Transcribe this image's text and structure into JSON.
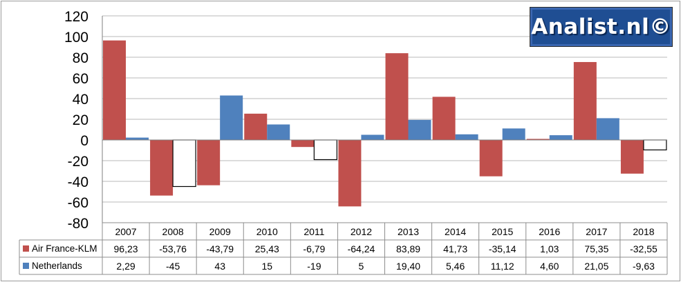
{
  "logo": {
    "text": "Analist.nl©",
    "bg_color": "#1f4e93"
  },
  "chart_data": {
    "type": "bar",
    "categories": [
      "2007",
      "2008",
      "2009",
      "2010",
      "2011",
      "2012",
      "2013",
      "2014",
      "2015",
      "2016",
      "2017",
      "2018"
    ],
    "ylim": [
      -80,
      120
    ],
    "yticks": [
      120,
      100,
      80,
      60,
      40,
      20,
      0,
      -20,
      -40,
      -60,
      -80
    ],
    "grid": true,
    "legend": "data-table",
    "negative_bar_style": "white fill for the second series",
    "series": [
      {
        "name": "Air France-KLM",
        "color": "#c0504d",
        "values": [
          96.23,
          -53.76,
          -43.79,
          25.43,
          -6.79,
          -64.24,
          83.89,
          41.73,
          -35.14,
          1.03,
          75.35,
          -32.55
        ],
        "labels": [
          "96,23",
          "-53,76",
          "-43,79",
          "25,43",
          "-6,79",
          "-64,24",
          "83,89",
          "41,73",
          "-35,14",
          "1,03",
          "75,35",
          "-32,55"
        ]
      },
      {
        "name": "Netherlands",
        "color": "#4f81bd",
        "values": [
          2.29,
          -45,
          43,
          15,
          -19,
          5,
          19.4,
          5.46,
          11.12,
          4.6,
          21.05,
          -9.63
        ],
        "labels": [
          "2,29",
          "-45",
          "43",
          "15",
          "-19",
          "5",
          "19,40",
          "5,46",
          "11,12",
          "4,60",
          "21,05",
          "-9,63"
        ]
      }
    ]
  }
}
